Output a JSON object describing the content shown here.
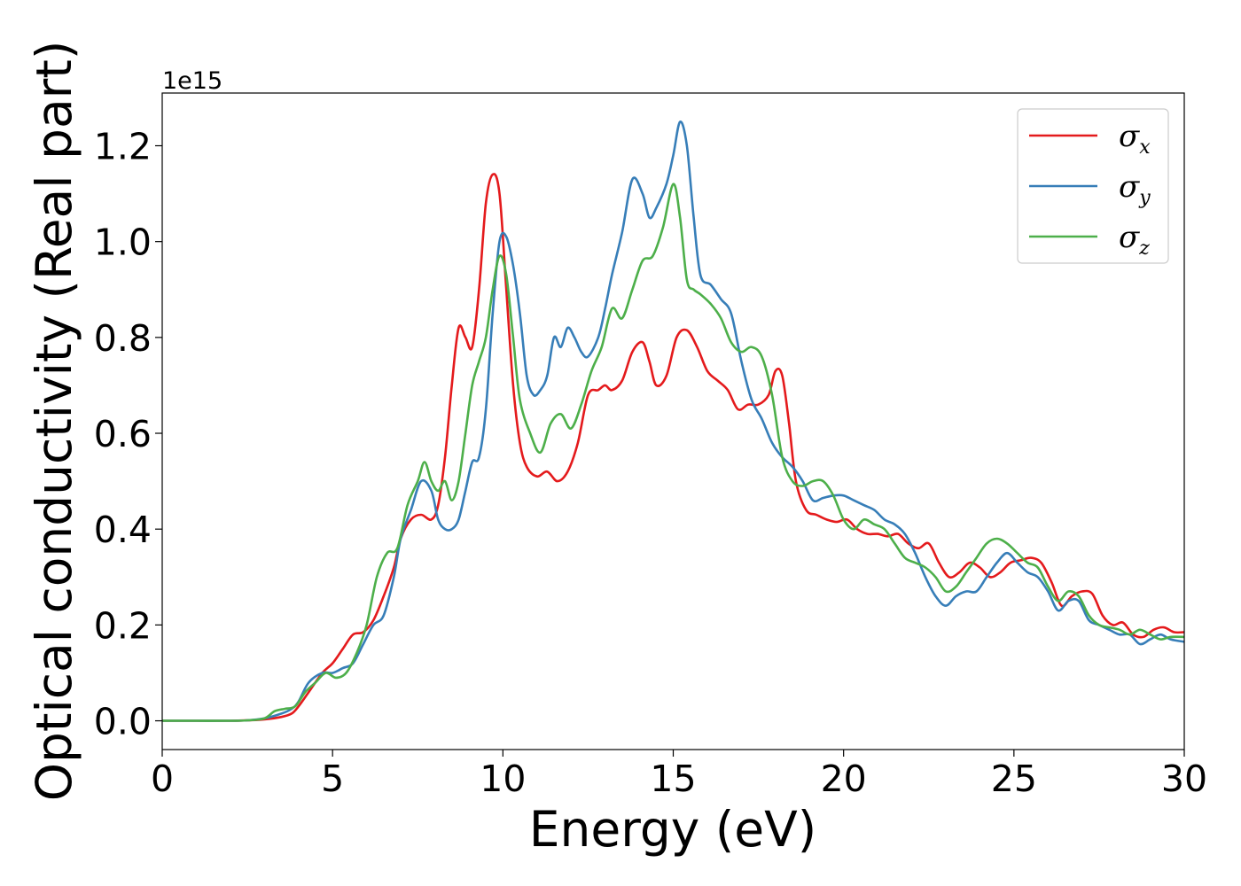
{
  "chart_data": {
    "type": "line",
    "xlabel": "Energy (eV)",
    "ylabel": "Optical conductivity (Real part)",
    "y_offset_text": "1e15",
    "y_scale": 1000000000000000.0,
    "xlim": [
      0,
      30
    ],
    "ylim": [
      -0.06,
      1.31
    ],
    "xticks": [
      0,
      5,
      10,
      15,
      20,
      25,
      30
    ],
    "yticks": [
      0.0,
      0.2,
      0.4,
      0.6,
      0.8,
      1.0,
      1.2
    ],
    "xtick_labels": [
      "0",
      "5",
      "10",
      "15",
      "20",
      "25",
      "30"
    ],
    "ytick_labels": [
      "0.0",
      "0.2",
      "0.4",
      "0.6",
      "0.8",
      "1.0",
      "1.2"
    ],
    "grid": false,
    "legend_position": "top-right",
    "series": [
      {
        "name": "σ",
        "subscript": "x",
        "color": "#e41a1c",
        "x": [
          0,
          1,
          2,
          2.5,
          3,
          3.5,
          3.8,
          4,
          4.3,
          4.7,
          5.0,
          5.3,
          5.6,
          5.9,
          6.2,
          6.5,
          6.8,
          7.0,
          7.3,
          7.6,
          7.9,
          8.1,
          8.3,
          8.5,
          8.7,
          8.9,
          9.1,
          9.3,
          9.5,
          9.7,
          9.9,
          10.1,
          10.3,
          10.5,
          10.7,
          11.0,
          11.3,
          11.6,
          11.9,
          12.2,
          12.5,
          12.8,
          13.0,
          13.2,
          13.5,
          13.8,
          14.1,
          14.3,
          14.5,
          14.8,
          15.1,
          15.4,
          15.7,
          16.0,
          16.3,
          16.6,
          16.9,
          17.2,
          17.5,
          17.8,
          18.0,
          18.2,
          18.4,
          18.6,
          18.9,
          19.2,
          19.5,
          19.8,
          20.1,
          20.4,
          20.7,
          21.0,
          21.3,
          21.6,
          21.9,
          22.2,
          22.5,
          22.8,
          23.1,
          23.4,
          23.7,
          24.0,
          24.3,
          24.6,
          24.9,
          25.2,
          25.5,
          25.8,
          26.1,
          26.4,
          26.7,
          27.0,
          27.3,
          27.6,
          27.9,
          28.2,
          28.5,
          28.8,
          29.1,
          29.4,
          29.7,
          30
        ],
        "y": [
          0,
          0,
          0,
          0.001,
          0.003,
          0.008,
          0.015,
          0.03,
          0.06,
          0.1,
          0.12,
          0.15,
          0.18,
          0.185,
          0.21,
          0.26,
          0.32,
          0.38,
          0.42,
          0.43,
          0.42,
          0.45,
          0.55,
          0.7,
          0.82,
          0.8,
          0.78,
          0.9,
          1.08,
          1.14,
          1.1,
          0.9,
          0.7,
          0.58,
          0.53,
          0.51,
          0.52,
          0.5,
          0.52,
          0.58,
          0.68,
          0.69,
          0.7,
          0.69,
          0.71,
          0.77,
          0.79,
          0.75,
          0.7,
          0.72,
          0.8,
          0.815,
          0.78,
          0.73,
          0.71,
          0.69,
          0.65,
          0.66,
          0.66,
          0.68,
          0.73,
          0.72,
          0.62,
          0.5,
          0.44,
          0.43,
          0.42,
          0.415,
          0.42,
          0.4,
          0.39,
          0.39,
          0.385,
          0.39,
          0.37,
          0.36,
          0.37,
          0.33,
          0.3,
          0.31,
          0.33,
          0.32,
          0.3,
          0.31,
          0.33,
          0.335,
          0.34,
          0.33,
          0.29,
          0.24,
          0.26,
          0.27,
          0.265,
          0.22,
          0.2,
          0.205,
          0.18,
          0.175,
          0.19,
          0.195,
          0.185,
          0.185
        ]
      },
      {
        "name": "σ",
        "subscript": "y",
        "color": "#377eb8",
        "x": [
          0,
          1,
          2,
          2.5,
          3,
          3.5,
          3.8,
          4,
          4.3,
          4.7,
          5.0,
          5.3,
          5.6,
          5.9,
          6.2,
          6.5,
          6.8,
          7.0,
          7.3,
          7.6,
          7.9,
          8.1,
          8.3,
          8.5,
          8.7,
          8.9,
          9.1,
          9.3,
          9.5,
          9.7,
          9.9,
          10.1,
          10.3,
          10.5,
          10.7,
          10.9,
          11.1,
          11.3,
          11.5,
          11.7,
          11.9,
          12.1,
          12.3,
          12.5,
          12.8,
          13.0,
          13.2,
          13.5,
          13.8,
          14.1,
          14.3,
          14.5,
          14.8,
          15.0,
          15.2,
          15.4,
          15.6,
          15.8,
          16.1,
          16.4,
          16.7,
          17.0,
          17.3,
          17.6,
          17.9,
          18.2,
          18.5,
          18.8,
          19.1,
          19.4,
          19.7,
          20.0,
          20.3,
          20.6,
          20.9,
          21.2,
          21.5,
          21.8,
          22.1,
          22.4,
          22.7,
          23.0,
          23.3,
          23.6,
          23.9,
          24.2,
          24.5,
          24.8,
          25.1,
          25.4,
          25.7,
          26.0,
          26.3,
          26.6,
          26.9,
          27.2,
          27.5,
          27.8,
          28.1,
          28.4,
          28.7,
          29.0,
          29.3,
          29.6,
          30
        ],
        "y": [
          0,
          0,
          0,
          0.001,
          0.005,
          0.015,
          0.025,
          0.04,
          0.08,
          0.1,
          0.1,
          0.11,
          0.12,
          0.16,
          0.2,
          0.22,
          0.3,
          0.38,
          0.44,
          0.5,
          0.48,
          0.42,
          0.4,
          0.4,
          0.42,
          0.48,
          0.54,
          0.55,
          0.65,
          0.85,
          1.0,
          1.01,
          0.95,
          0.85,
          0.72,
          0.68,
          0.69,
          0.72,
          0.8,
          0.78,
          0.82,
          0.8,
          0.77,
          0.76,
          0.8,
          0.86,
          0.93,
          1.02,
          1.13,
          1.1,
          1.05,
          1.07,
          1.12,
          1.18,
          1.25,
          1.2,
          1.05,
          0.93,
          0.91,
          0.88,
          0.85,
          0.75,
          0.67,
          0.63,
          0.58,
          0.55,
          0.53,
          0.5,
          0.46,
          0.465,
          0.47,
          0.47,
          0.46,
          0.45,
          0.44,
          0.42,
          0.41,
          0.39,
          0.35,
          0.3,
          0.26,
          0.24,
          0.26,
          0.27,
          0.27,
          0.3,
          0.33,
          0.35,
          0.33,
          0.31,
          0.3,
          0.27,
          0.23,
          0.25,
          0.25,
          0.21,
          0.2,
          0.19,
          0.18,
          0.18,
          0.16,
          0.17,
          0.18,
          0.17,
          0.165
        ]
      },
      {
        "name": "σ",
        "subscript": "z",
        "color": "#4daf4a",
        "x": [
          0,
          1,
          2,
          2.5,
          3,
          3.3,
          3.6,
          3.9,
          4.2,
          4.5,
          4.8,
          5.1,
          5.4,
          5.7,
          6.0,
          6.3,
          6.6,
          6.9,
          7.2,
          7.5,
          7.7,
          7.9,
          8.1,
          8.3,
          8.5,
          8.7,
          8.9,
          9.1,
          9.3,
          9.5,
          9.7,
          9.9,
          10.1,
          10.3,
          10.5,
          10.8,
          11.1,
          11.4,
          11.7,
          12.0,
          12.3,
          12.6,
          12.9,
          13.2,
          13.5,
          13.8,
          14.1,
          14.4,
          14.7,
          15.0,
          15.2,
          15.4,
          15.6,
          15.8,
          16.1,
          16.4,
          16.7,
          17.0,
          17.3,
          17.6,
          17.9,
          18.2,
          18.5,
          18.8,
          19.1,
          19.4,
          19.7,
          20.0,
          20.3,
          20.6,
          20.9,
          21.2,
          21.5,
          21.8,
          22.1,
          22.4,
          22.7,
          23.0,
          23.3,
          23.6,
          23.9,
          24.2,
          24.5,
          24.8,
          25.1,
          25.4,
          25.7,
          26.0,
          26.3,
          26.6,
          26.9,
          27.2,
          27.5,
          27.8,
          28.1,
          28.4,
          28.7,
          29.0,
          29.3,
          29.6,
          30
        ],
        "y": [
          0,
          0,
          0,
          0.001,
          0.005,
          0.02,
          0.025,
          0.03,
          0.06,
          0.08,
          0.1,
          0.09,
          0.1,
          0.14,
          0.2,
          0.3,
          0.35,
          0.36,
          0.45,
          0.5,
          0.54,
          0.5,
          0.48,
          0.5,
          0.46,
          0.5,
          0.6,
          0.7,
          0.75,
          0.8,
          0.9,
          0.97,
          0.93,
          0.8,
          0.67,
          0.6,
          0.56,
          0.62,
          0.64,
          0.61,
          0.66,
          0.73,
          0.78,
          0.86,
          0.84,
          0.9,
          0.96,
          0.97,
          1.03,
          1.12,
          1.05,
          0.92,
          0.9,
          0.89,
          0.87,
          0.84,
          0.79,
          0.77,
          0.78,
          0.76,
          0.68,
          0.55,
          0.5,
          0.49,
          0.5,
          0.5,
          0.47,
          0.42,
          0.4,
          0.42,
          0.41,
          0.4,
          0.37,
          0.34,
          0.33,
          0.32,
          0.3,
          0.27,
          0.28,
          0.31,
          0.34,
          0.37,
          0.38,
          0.37,
          0.35,
          0.33,
          0.32,
          0.28,
          0.25,
          0.27,
          0.26,
          0.22,
          0.2,
          0.195,
          0.19,
          0.18,
          0.19,
          0.18,
          0.17,
          0.175,
          0.175
        ]
      }
    ]
  }
}
